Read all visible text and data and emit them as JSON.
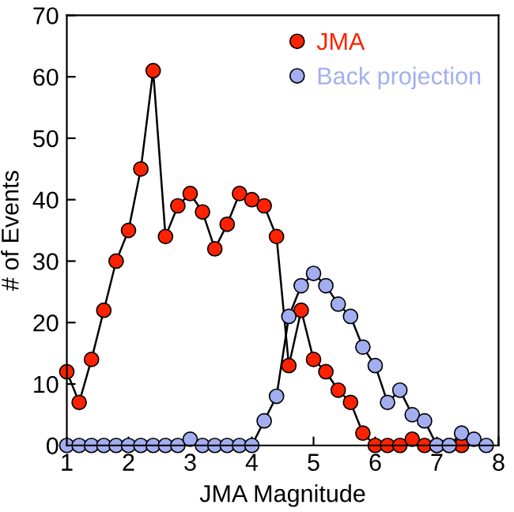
{
  "chart_data": {
    "type": "line",
    "xlabel": "JMA Magnitude",
    "ylabel": "# of Events",
    "xlim": [
      1,
      8
    ],
    "ylim": [
      0,
      70
    ],
    "xticks": [
      1,
      2,
      3,
      4,
      5,
      6,
      7,
      8
    ],
    "yticks": [
      0,
      10,
      20,
      30,
      40,
      50,
      60,
      70
    ],
    "grid": false,
    "legend": "top right",
    "marker": "circle",
    "line_style": "solid",
    "series": [
      {
        "name": "JMA",
        "color": "#ff2200",
        "x": [
          1.0,
          1.2,
          1.4,
          1.6,
          1.8,
          2.0,
          2.2,
          2.4,
          2.6,
          2.8,
          3.0,
          3.2,
          3.4,
          3.6,
          3.8,
          4.0,
          4.2,
          4.4,
          4.6,
          4.8,
          5.0,
          5.2,
          5.4,
          5.6,
          5.8,
          6.0,
          6.2,
          6.4,
          6.6,
          6.8,
          7.0,
          7.2,
          7.4
        ],
        "values": [
          12,
          7,
          14,
          22,
          30,
          35,
          45,
          61,
          34,
          39,
          41,
          38,
          32,
          36,
          41,
          40,
          39,
          34,
          13,
          22,
          14,
          12,
          9,
          7,
          2,
          0,
          0,
          0,
          1,
          0,
          0,
          0,
          0
        ]
      },
      {
        "name": "Back projection",
        "color": "#a3aef0",
        "x": [
          1.0,
          1.2,
          1.4,
          1.6,
          1.8,
          2.0,
          2.2,
          2.4,
          2.6,
          2.8,
          3.0,
          3.2,
          3.4,
          3.6,
          3.8,
          4.0,
          4.2,
          4.4,
          4.6,
          4.8,
          5.0,
          5.2,
          5.4,
          5.6,
          5.8,
          6.0,
          6.2,
          6.4,
          6.6,
          6.8,
          7.0,
          7.2,
          7.4,
          7.6,
          7.8
        ],
        "values": [
          0,
          0,
          0,
          0,
          0,
          0,
          0,
          0,
          0,
          0,
          1,
          0,
          0,
          0,
          0,
          0,
          4,
          8,
          21,
          26,
          28,
          26,
          23,
          21,
          16,
          13,
          7,
          9,
          5,
          4,
          0,
          0,
          2,
          1,
          0
        ]
      }
    ]
  }
}
